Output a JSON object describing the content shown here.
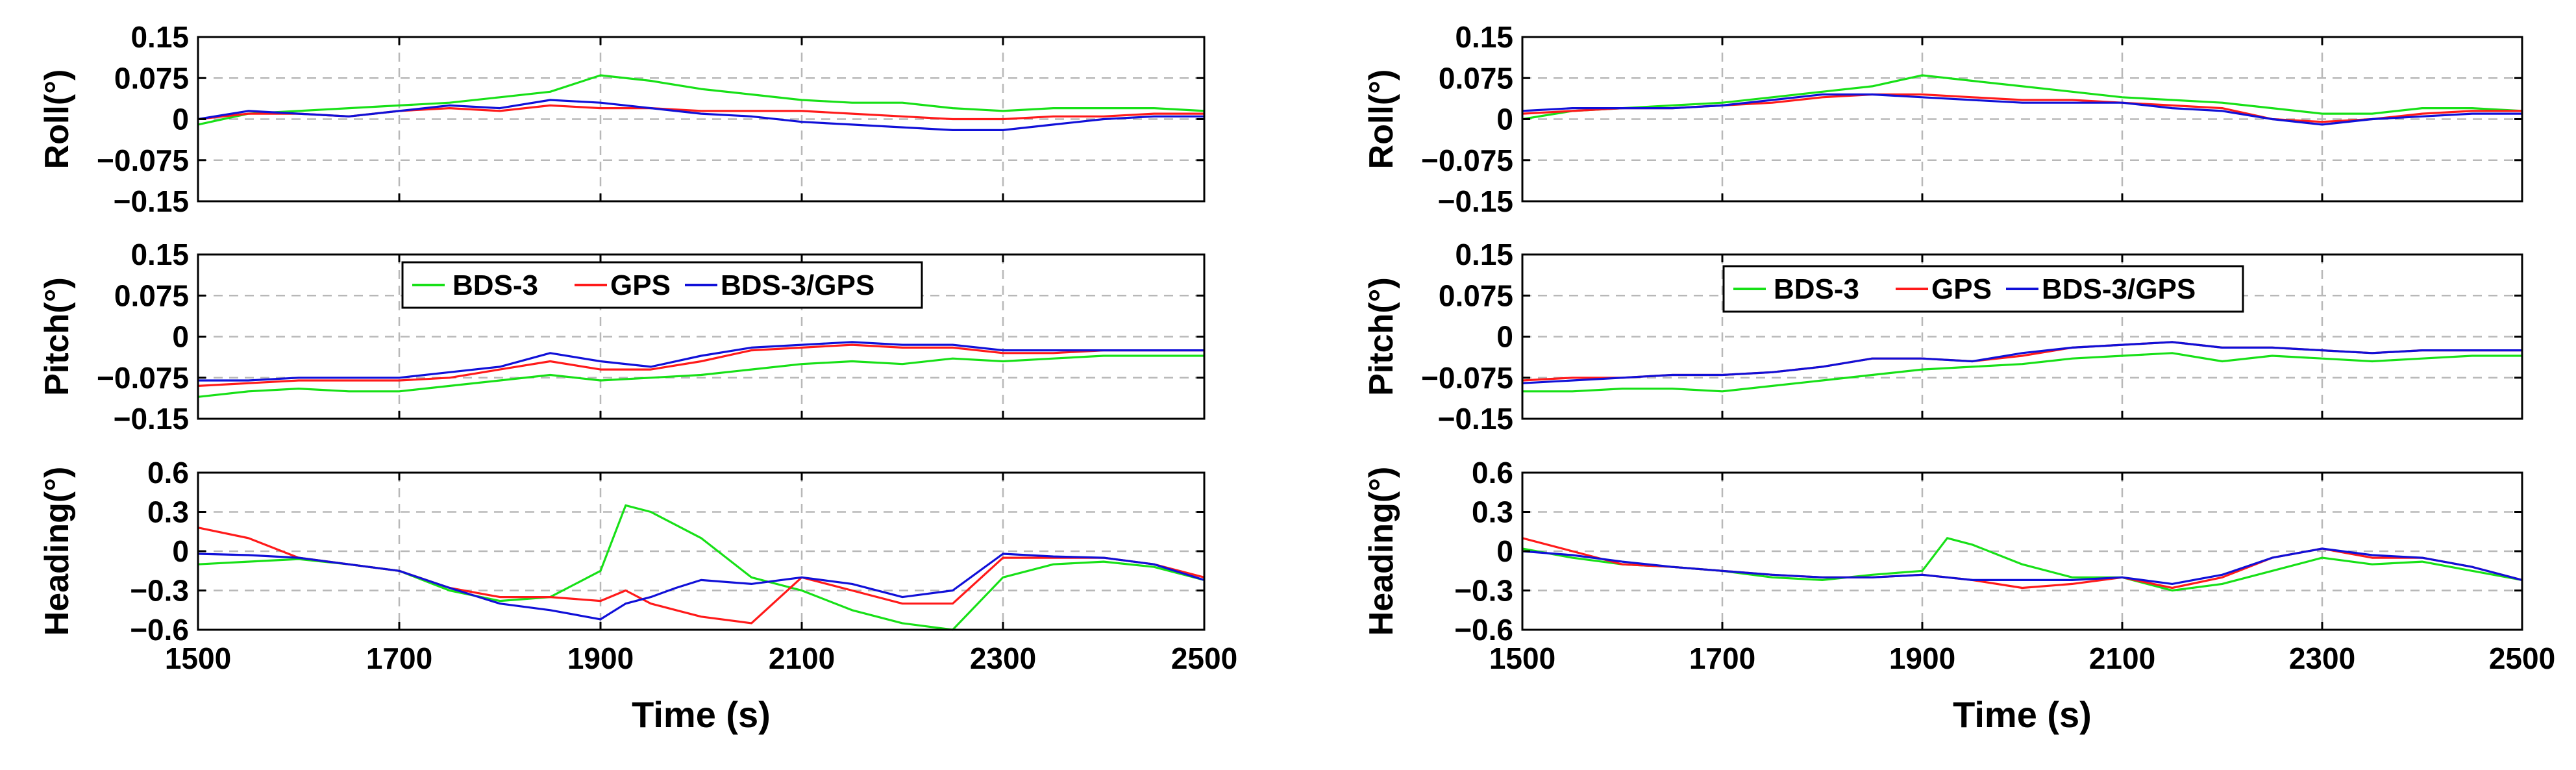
{
  "chart_data": [
    {
      "type": "line",
      "name": "left-panel",
      "legend_location": "pitch-top-center",
      "series_colors": {
        "BDS-3": "#17e017",
        "GPS": "#ff1a1a",
        "BDS-3/GPS": "#1010d8"
      },
      "legend": [
        "BDS-3",
        "GPS",
        "BDS-3/GPS"
      ],
      "xlabel": "Time (s)",
      "xlim": [
        1500,
        2500
      ],
      "xticks": [
        1500,
        1700,
        1900,
        2100,
        2300,
        2500
      ],
      "xtick_labels": [
        "1500",
        "1700",
        "1900",
        "2100",
        "2300",
        "2500"
      ],
      "subplots": [
        {
          "ylabel": "Roll(°)",
          "ylim": [
            -0.15,
            0.15
          ],
          "yticks": [
            0.15,
            0.075,
            0,
            -0.075,
            -0.15
          ],
          "ytick_labels": [
            "0.15",
            "0.075",
            "0",
            "−0.075",
            "−0.15"
          ],
          "x": [
            1500,
            1550,
            1600,
            1650,
            1700,
            1750,
            1800,
            1850,
            1900,
            1950,
            2000,
            2050,
            2100,
            2150,
            2200,
            2250,
            2300,
            2350,
            2400,
            2450,
            2500
          ],
          "series": [
            {
              "name": "BDS-3",
              "values": [
                -0.01,
                0.01,
                0.015,
                0.02,
                0.025,
                0.03,
                0.04,
                0.05,
                0.08,
                0.07,
                0.055,
                0.045,
                0.035,
                0.03,
                0.03,
                0.02,
                0.015,
                0.02,
                0.02,
                0.02,
                0.015
              ]
            },
            {
              "name": "GPS",
              "values": [
                0.0,
                0.01,
                0.01,
                0.005,
                0.015,
                0.02,
                0.015,
                0.025,
                0.02,
                0.02,
                0.015,
                0.015,
                0.015,
                0.01,
                0.005,
                0.0,
                0.0,
                0.005,
                0.005,
                0.01,
                0.01
              ]
            },
            {
              "name": "BDS-3/GPS",
              "values": [
                0.0,
                0.015,
                0.01,
                0.005,
                0.015,
                0.025,
                0.02,
                0.035,
                0.03,
                0.02,
                0.01,
                0.005,
                -0.005,
                -0.01,
                -0.015,
                -0.02,
                -0.02,
                -0.01,
                0.0,
                0.005,
                0.005
              ]
            }
          ]
        },
        {
          "ylabel": "Pitch(°)",
          "ylim": [
            -0.15,
            0.15
          ],
          "yticks": [
            0.15,
            0.075,
            0,
            -0.075,
            -0.15
          ],
          "ytick_labels": [
            "0.15",
            "0.075",
            "0",
            "−0.075",
            "−0.15"
          ],
          "x": [
            1500,
            1550,
            1600,
            1650,
            1700,
            1750,
            1800,
            1850,
            1900,
            1950,
            2000,
            2050,
            2100,
            2150,
            2200,
            2250,
            2300,
            2350,
            2400,
            2450,
            2500
          ],
          "series": [
            {
              "name": "BDS-3",
              "values": [
                -0.11,
                -0.1,
                -0.095,
                -0.1,
                -0.1,
                -0.09,
                -0.08,
                -0.07,
                -0.08,
                -0.075,
                -0.07,
                -0.06,
                -0.05,
                -0.045,
                -0.05,
                -0.04,
                -0.045,
                -0.04,
                -0.035,
                -0.035,
                -0.035
              ]
            },
            {
              "name": "GPS",
              "values": [
                -0.09,
                -0.085,
                -0.08,
                -0.08,
                -0.08,
                -0.075,
                -0.06,
                -0.045,
                -0.06,
                -0.06,
                -0.045,
                -0.025,
                -0.02,
                -0.015,
                -0.02,
                -0.02,
                -0.03,
                -0.03,
                -0.025,
                -0.025,
                -0.025
              ]
            },
            {
              "name": "BDS-3/GPS",
              "values": [
                -0.08,
                -0.08,
                -0.075,
                -0.075,
                -0.075,
                -0.065,
                -0.055,
                -0.03,
                -0.045,
                -0.055,
                -0.035,
                -0.02,
                -0.015,
                -0.01,
                -0.015,
                -0.015,
                -0.025,
                -0.025,
                -0.025,
                -0.025,
                -0.025
              ]
            }
          ]
        },
        {
          "ylabel": "Heading(°)",
          "ylim": [
            -0.6,
            0.6
          ],
          "yticks": [
            0.6,
            0.3,
            0,
            -0.3,
            -0.6
          ],
          "ytick_labels": [
            "0.6",
            "0.3",
            "0",
            "−0.3",
            "−0.6"
          ],
          "x": [
            1500,
            1550,
            1600,
            1650,
            1700,
            1750,
            1800,
            1850,
            1900,
            1925,
            1950,
            1975,
            2000,
            2050,
            2100,
            2150,
            2200,
            2250,
            2300,
            2350,
            2400,
            2450,
            2500
          ],
          "series": [
            {
              "name": "BDS-3",
              "values": [
                -0.1,
                -0.08,
                -0.06,
                -0.1,
                -0.15,
                -0.3,
                -0.38,
                -0.35,
                -0.15,
                0.35,
                0.3,
                0.2,
                0.1,
                -0.2,
                -0.3,
                -0.45,
                -0.55,
                -0.6,
                -0.2,
                -0.1,
                -0.08,
                -0.12,
                -0.22
              ]
            },
            {
              "name": "GPS",
              "values": [
                0.18,
                0.1,
                -0.05,
                -0.1,
                -0.15,
                -0.28,
                -0.35,
                -0.35,
                -0.38,
                -0.3,
                -0.4,
                -0.45,
                -0.5,
                -0.55,
                -0.2,
                -0.3,
                -0.4,
                -0.4,
                -0.05,
                -0.05,
                -0.05,
                -0.1,
                -0.2
              ]
            },
            {
              "name": "BDS-3/GPS",
              "values": [
                -0.02,
                -0.03,
                -0.05,
                -0.1,
                -0.15,
                -0.28,
                -0.4,
                -0.45,
                -0.52,
                -0.4,
                -0.35,
                -0.28,
                -0.22,
                -0.25,
                -0.2,
                -0.25,
                -0.35,
                -0.3,
                -0.02,
                -0.04,
                -0.05,
                -0.1,
                -0.22
              ]
            }
          ]
        }
      ]
    },
    {
      "type": "line",
      "name": "right-panel",
      "legend_location": "pitch-top-center",
      "series_colors": {
        "BDS-3": "#17e017",
        "GPS": "#ff1a1a",
        "BDS-3/GPS": "#1010d8"
      },
      "legend": [
        "BDS-3",
        "GPS",
        "BDS-3/GPS"
      ],
      "xlabel": "Time (s)",
      "xlim": [
        1500,
        2500
      ],
      "xticks": [
        1500,
        1700,
        1900,
        2100,
        2300,
        2500
      ],
      "xtick_labels": [
        "1500",
        "1700",
        "1900",
        "2100",
        "2300",
        "2500"
      ],
      "subplots": [
        {
          "ylabel": "Roll(°)",
          "ylim": [
            -0.15,
            0.15
          ],
          "yticks": [
            0.15,
            0.075,
            0,
            -0.075,
            -0.15
          ],
          "ytick_labels": [
            "0.15",
            "0.075",
            "0",
            "−0.075",
            "−0.15"
          ],
          "x": [
            1500,
            1550,
            1600,
            1650,
            1700,
            1750,
            1800,
            1850,
            1900,
            1950,
            2000,
            2050,
            2100,
            2150,
            2200,
            2250,
            2300,
            2350,
            2400,
            2450,
            2500
          ],
          "series": [
            {
              "name": "BDS-3",
              "values": [
                0.0,
                0.015,
                0.02,
                0.025,
                0.03,
                0.04,
                0.05,
                0.06,
                0.08,
                0.07,
                0.06,
                0.05,
                0.04,
                0.035,
                0.03,
                0.02,
                0.01,
                0.01,
                0.02,
                0.02,
                0.015
              ]
            },
            {
              "name": "GPS",
              "values": [
                0.01,
                0.015,
                0.02,
                0.02,
                0.025,
                0.03,
                0.04,
                0.045,
                0.045,
                0.04,
                0.035,
                0.035,
                0.03,
                0.025,
                0.02,
                0.0,
                -0.005,
                0.0,
                0.01,
                0.015,
                0.015
              ]
            },
            {
              "name": "BDS-3/GPS",
              "values": [
                0.015,
                0.02,
                0.02,
                0.02,
                0.025,
                0.035,
                0.045,
                0.045,
                0.04,
                0.035,
                0.03,
                0.03,
                0.03,
                0.02,
                0.015,
                0.0,
                -0.01,
                0.0,
                0.005,
                0.01,
                0.01
              ]
            }
          ]
        },
        {
          "ylabel": "Pitch(°)",
          "ylim": [
            -0.15,
            0.15
          ],
          "yticks": [
            0.15,
            0.075,
            0,
            -0.075,
            -0.15
          ],
          "ytick_labels": [
            "0.15",
            "0.075",
            "0",
            "−0.075",
            "−0.15"
          ],
          "x": [
            1500,
            1550,
            1600,
            1650,
            1700,
            1750,
            1800,
            1850,
            1900,
            1950,
            2000,
            2050,
            2100,
            2150,
            2200,
            2250,
            2300,
            2350,
            2400,
            2450,
            2500
          ],
          "series": [
            {
              "name": "BDS-3",
              "values": [
                -0.1,
                -0.1,
                -0.095,
                -0.095,
                -0.1,
                -0.09,
                -0.08,
                -0.07,
                -0.06,
                -0.055,
                -0.05,
                -0.04,
                -0.035,
                -0.03,
                -0.045,
                -0.035,
                -0.04,
                -0.045,
                -0.04,
                -0.035,
                -0.035
              ]
            },
            {
              "name": "GPS",
              "values": [
                -0.08,
                -0.075,
                -0.075,
                -0.07,
                -0.07,
                -0.065,
                -0.055,
                -0.04,
                -0.04,
                -0.045,
                -0.035,
                -0.02,
                -0.015,
                -0.01,
                -0.02,
                -0.02,
                -0.025,
                -0.03,
                -0.025,
                -0.025,
                -0.025
              ]
            },
            {
              "name": "BDS-3/GPS",
              "values": [
                -0.085,
                -0.08,
                -0.075,
                -0.07,
                -0.07,
                -0.065,
                -0.055,
                -0.04,
                -0.04,
                -0.045,
                -0.03,
                -0.02,
                -0.015,
                -0.01,
                -0.02,
                -0.02,
                -0.025,
                -0.03,
                -0.025,
                -0.025,
                -0.025
              ]
            }
          ]
        },
        {
          "ylabel": "Heading(°)",
          "ylim": [
            -0.6,
            0.6
          ],
          "yticks": [
            0.6,
            0.3,
            0,
            -0.3,
            -0.6
          ],
          "ytick_labels": [
            "0.6",
            "0.3",
            "0",
            "−0.3",
            "−0.6"
          ],
          "x": [
            1500,
            1550,
            1600,
            1650,
            1700,
            1750,
            1800,
            1850,
            1900,
            1925,
            1950,
            2000,
            2050,
            2100,
            2150,
            2200,
            2250,
            2300,
            2350,
            2400,
            2450,
            2500
          ],
          "series": [
            {
              "name": "BDS-3",
              "values": [
                0.02,
                -0.05,
                -0.1,
                -0.12,
                -0.15,
                -0.2,
                -0.22,
                -0.18,
                -0.15,
                0.1,
                0.05,
                -0.1,
                -0.2,
                -0.2,
                -0.3,
                -0.25,
                -0.15,
                -0.05,
                -0.1,
                -0.08,
                -0.15,
                -0.22
              ]
            },
            {
              "name": "GPS",
              "values": [
                0.1,
                0.0,
                -0.1,
                -0.12,
                -0.15,
                -0.18,
                -0.2,
                -0.2,
                -0.18,
                -0.2,
                -0.22,
                -0.28,
                -0.25,
                -0.2,
                -0.28,
                -0.2,
                -0.05,
                0.02,
                -0.05,
                -0.05,
                -0.12,
                -0.22
              ]
            },
            {
              "name": "BDS-3/GPS",
              "values": [
                0.0,
                -0.03,
                -0.08,
                -0.12,
                -0.15,
                -0.18,
                -0.2,
                -0.2,
                -0.18,
                -0.2,
                -0.22,
                -0.22,
                -0.22,
                -0.2,
                -0.25,
                -0.18,
                -0.05,
                0.02,
                -0.03,
                -0.05,
                -0.12,
                -0.22
              ]
            }
          ]
        }
      ]
    }
  ]
}
